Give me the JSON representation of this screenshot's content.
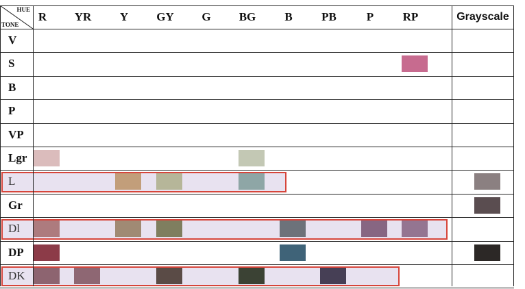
{
  "corner": {
    "hue": "HUE",
    "tone": "TONE"
  },
  "hues": [
    "R",
    "YR",
    "Y",
    "GY",
    "G",
    "BG",
    "B",
    "PB",
    "P",
    "RP"
  ],
  "grayscale_label": "Grayscale",
  "tones": [
    "V",
    "S",
    "B",
    "P",
    "VP",
    "Lgr",
    "L",
    "Gr",
    "Dl",
    "DP",
    "DK"
  ],
  "highlighted_tones": [
    "L",
    "Dl",
    "DK"
  ],
  "accent_color": "#d6453b",
  "band_fill": "#e8e2f0",
  "swatches": [
    {
      "tone": "S",
      "hue": "RP",
      "color": "#c76b8f"
    },
    {
      "tone": "Lgr",
      "hue": "R",
      "color": "#dbbcbc"
    },
    {
      "tone": "Lgr",
      "hue": "BG",
      "color": "#c3c8b4"
    },
    {
      "tone": "L",
      "hue": "Y",
      "color": "#c29e7a"
    },
    {
      "tone": "L",
      "hue": "GY",
      "color": "#b6b699"
    },
    {
      "tone": "L",
      "hue": "BG",
      "color": "#8ea6a6"
    },
    {
      "tone": "L",
      "hue": "Grayscale",
      "color": "#8b8081"
    },
    {
      "tone": "Gr",
      "hue": "Grayscale",
      "color": "#5a4d50"
    },
    {
      "tone": "Dl",
      "hue": "R",
      "color": "#ad7b7e"
    },
    {
      "tone": "Dl",
      "hue": "Y",
      "color": "#a08a74"
    },
    {
      "tone": "Dl",
      "hue": "GY",
      "color": "#7f7e5f"
    },
    {
      "tone": "Dl",
      "hue": "B",
      "color": "#6d727a"
    },
    {
      "tone": "Dl",
      "hue": "P",
      "color": "#876682"
    },
    {
      "tone": "Dl",
      "hue": "RP",
      "color": "#947591"
    },
    {
      "tone": "DP",
      "hue": "R",
      "color": "#8c3b48"
    },
    {
      "tone": "DP",
      "hue": "B",
      "color": "#3f6378"
    },
    {
      "tone": "DP",
      "hue": "Grayscale",
      "color": "#2c2826"
    },
    {
      "tone": "DK",
      "hue": "R",
      "color": "#8d6470"
    },
    {
      "tone": "DK",
      "hue": "YR",
      "color": "#8e6773"
    },
    {
      "tone": "DK",
      "hue": "GY",
      "color": "#5a4b46"
    },
    {
      "tone": "DK",
      "hue": "BG",
      "color": "#3b4234"
    },
    {
      "tone": "DK",
      "hue": "PB",
      "color": "#463f55"
    }
  ]
}
